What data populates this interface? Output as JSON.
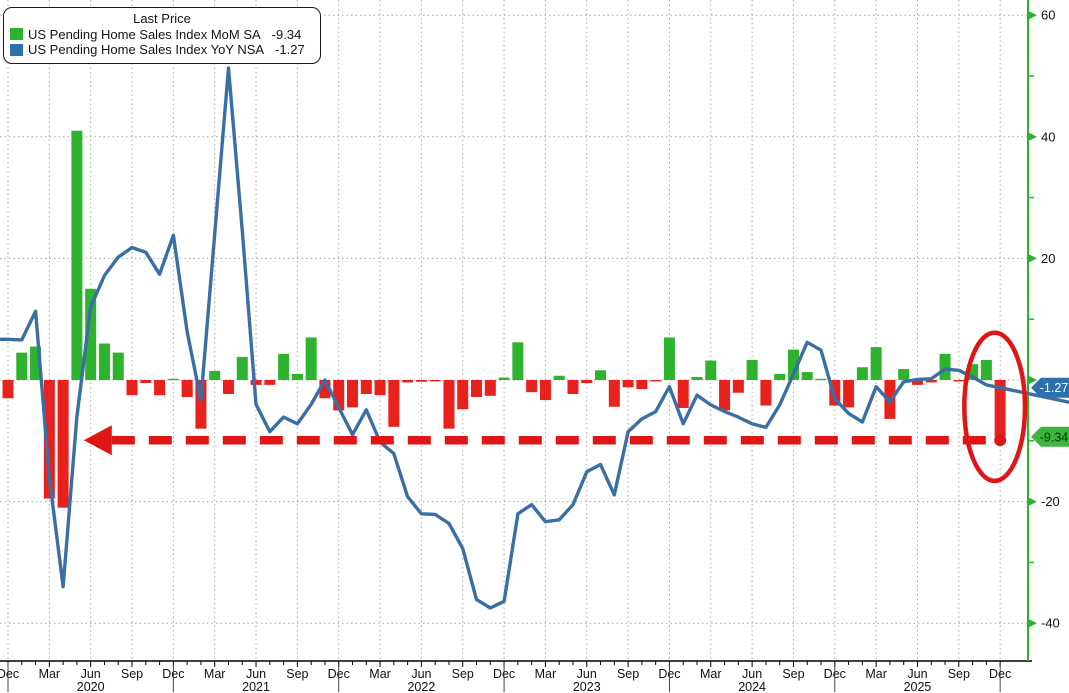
{
  "legend": {
    "title": "Last Price",
    "series": [
      {
        "name": "US Pending Home Sales Index MoM SA",
        "value": "-9.34",
        "swatch": "green-square"
      },
      {
        "name": "US Pending Home Sales Index YoY NSA",
        "value": "-1.27",
        "swatch": "blue-square"
      }
    ]
  },
  "chart_data": {
    "type": "bar+line",
    "x_start": "Dec 2019",
    "x_end": "Dec 2025",
    "months_count": 73,
    "series": [
      {
        "name": "US Pending Home Sales Index MoM SA",
        "style": "bar",
        "last": -9.34,
        "values": [
          -3.0,
          4.5,
          5.5,
          -19.5,
          -21.0,
          41.0,
          15.0,
          6.0,
          4.5,
          -2.5,
          -0.5,
          -2.5,
          0.2,
          -2.8,
          -8.0,
          1.5,
          -2.3,
          3.8,
          -0.8,
          -0.8,
          4.3,
          1.0,
          7.0,
          -3.0,
          -5.0,
          -4.5,
          -2.3,
          -2.5,
          -7.7,
          -0.4,
          -0.3,
          -0.2,
          -8.0,
          -4.8,
          -2.8,
          -2.6,
          0.4,
          6.2,
          -2.0,
          -3.3,
          0.7,
          -2.3,
          -0.5,
          1.6,
          -4.4,
          -1.2,
          -1.5,
          -0.2,
          7.0,
          -4.6,
          0.5,
          3.2,
          -5.0,
          -2.1,
          3.3,
          -4.2,
          1.0,
          5.0,
          1.3,
          0.2,
          -4.2,
          -4.5,
          2.1,
          5.4,
          -6.4,
          1.8,
          -0.8,
          -0.4,
          4.3,
          -0.1,
          2.6,
          3.3,
          -9.34
        ]
      },
      {
        "name": "US Pending Home Sales Index YoY NSA",
        "style": "line",
        "last": -1.27,
        "values": [
          6.7,
          6.6,
          11.3,
          -16.0,
          -34.0,
          -6.0,
          12.0,
          17.2,
          20.2,
          21.8,
          21.0,
          17.4,
          23.8,
          8.0,
          -3.3,
          24.0,
          51.3,
          24.5,
          -4.0,
          -8.5,
          -6.1,
          -7.2,
          -4.0,
          0.0,
          -4.5,
          -9.0,
          -4.9,
          -10.2,
          -12.1,
          -19.2,
          -22.0,
          -22.1,
          -23.6,
          -27.7,
          -36.1,
          -37.5,
          -36.4,
          -22.0,
          -20.5,
          -23.3,
          -23.0,
          -20.5,
          -15.1,
          -13.9,
          -18.9,
          -8.5,
          -6.4,
          -5.2,
          -1.1,
          -7.2,
          -2.5,
          -4.1,
          -5.2,
          -6.1,
          -7.2,
          -7.8,
          -4.1,
          1.0,
          6.2,
          4.9,
          -3.1,
          -5.5,
          -6.9,
          -1.1,
          -3.6,
          -0.3,
          0.1,
          0.2,
          1.8,
          1.6,
          0.5,
          -0.8,
          -1.27
        ]
      }
    ],
    "y_axis": {
      "side": "right",
      "majors": [
        {
          "v": 60,
          "label": "60"
        },
        {
          "v": 40,
          "label": "40"
        },
        {
          "v": 20,
          "label": "20"
        },
        {
          "v": 0,
          "label": ""
        },
        {
          "v": -20,
          "label": "-20"
        },
        {
          "v": -40,
          "label": "-40"
        }
      ],
      "minors": [
        50,
        30,
        10,
        -10,
        -30
      ],
      "gridline_values": [
        60,
        40,
        20,
        0,
        -20,
        -40
      ],
      "ylim": [
        -46,
        62
      ]
    },
    "x_axis": {
      "quarter_labels": [
        "Dec",
        "Mar",
        "Jun",
        "Sep",
        "Dec",
        "Mar",
        "Jun",
        "Sep",
        "Dec",
        "Mar",
        "Jun",
        "Sep",
        "Dec",
        "Mar",
        "Jun",
        "Sep",
        "Dec",
        "Mar",
        "Jun",
        "Sep",
        "Dec",
        "Mar",
        "Jun",
        "Sep",
        "Dec"
      ],
      "year_labels": [
        {
          "label": "2020",
          "month_index": 6
        },
        {
          "label": "2021",
          "month_index": 18
        },
        {
          "label": "2022",
          "month_index": 30
        },
        {
          "label": "2023",
          "month_index": 42
        },
        {
          "label": "2024",
          "month_index": 54
        },
        {
          "label": "2025",
          "month_index": 66
        }
      ]
    },
    "badges": [
      {
        "text": "-1.27",
        "value": -1.27,
        "bg": "#2e6fae",
        "fg": "#ffffff"
      },
      {
        "text": "-9.34",
        "value": -9.34,
        "bg": "#3bb53b",
        "fg": "#0d2b0d"
      }
    ],
    "annotations": {
      "arrow": {
        "shape": "dashed-horizontal-arrow-left",
        "level": -9.9,
        "from_month_index": 72,
        "to_month_index": 5.5,
        "color": "#e01616"
      },
      "ellipse": {
        "shape": "highlight-ellipse",
        "center_month_index": 71.6,
        "center_value": -4.4,
        "rx_months": 2.2,
        "ry_units": 12.2,
        "color": "#e01616"
      }
    },
    "colors": {
      "mom_up": "#2db32d",
      "mom_down": "#e8211c",
      "yoy_line": "#3a6fa5",
      "axis_green": "#2db32d",
      "annotation_red": "#e01616",
      "grid": "#a8a8a8",
      "axis_black": "#000000"
    },
    "legend_position": "top-left",
    "grid": true
  }
}
